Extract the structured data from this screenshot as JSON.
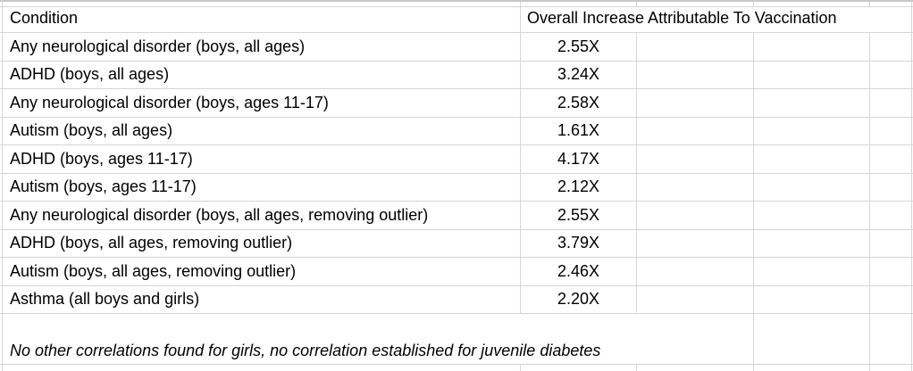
{
  "sheet": {
    "header": {
      "condition_label": "Condition",
      "value_label": "Overall Increase Attributable To Vaccination"
    },
    "rows": [
      {
        "condition": "Any neurological disorder (boys, all ages)",
        "value": "2.55X"
      },
      {
        "condition": "ADHD (boys, all ages)",
        "value": "3.24X"
      },
      {
        "condition": "Any neurological disorder (boys, ages 11-17)",
        "value": "2.58X"
      },
      {
        "condition": "Autism (boys, all ages)",
        "value": "1.61X"
      },
      {
        "condition": "ADHD (boys, ages 11-17)",
        "value": "4.17X"
      },
      {
        "condition": "Autism (boys, ages 11-17)",
        "value": "2.12X"
      },
      {
        "condition": "Any neurological disorder (boys, all ages, removing outlier)",
        "value": "2.55X"
      },
      {
        "condition": "ADHD (boys, all ages, removing outlier)",
        "value": "3.79X"
      },
      {
        "condition": "Autism (boys, all ages, removing outlier)",
        "value": "2.46X"
      },
      {
        "condition": "Asthma (all boys and girls)",
        "value": "2.20X"
      }
    ],
    "footnote": "No other correlations found for girls, no correlation established for juvenile diabetes"
  },
  "colors": {
    "background": "#ffffff",
    "text": "#000000",
    "gridline": "#d5d5d5",
    "top_edge": "#c7c7c7"
  }
}
